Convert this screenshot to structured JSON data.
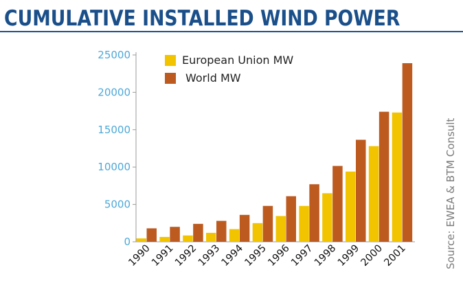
{
  "page": {
    "title": "CUMULATIVE INSTALLED WIND POWER",
    "source": "Source: EWEA & BTM Consult"
  },
  "colors": {
    "eu": "#f2c400",
    "world": "#bd5a20",
    "axis_text": "#4da8d8",
    "title": "#1a4f8a"
  },
  "chart_data": {
    "type": "bar",
    "title": "CUMULATIVE INSTALLED WIND POWER",
    "categories": [
      "1990",
      "1991",
      "1992",
      "1993",
      "1994",
      "1995",
      "1996",
      "1997",
      "1998",
      "1999",
      "2000",
      "2001"
    ],
    "series": [
      {
        "name": "European Union MW",
        "values": [
          450,
          650,
          850,
          1200,
          1700,
          2500,
          3450,
          4800,
          6500,
          9400,
          12800,
          17300
        ]
      },
      {
        "name": "World MW",
        "values": [
          1800,
          2000,
          2400,
          2800,
          3600,
          4800,
          6100,
          7700,
          10150,
          13650,
          17400,
          23900
        ]
      }
    ],
    "yticks": [
      "0",
      "5000",
      "10000",
      "15000",
      "20000",
      "25000"
    ],
    "ylim": [
      0,
      25000
    ],
    "legend": "top-left inside plot",
    "grid": false
  }
}
